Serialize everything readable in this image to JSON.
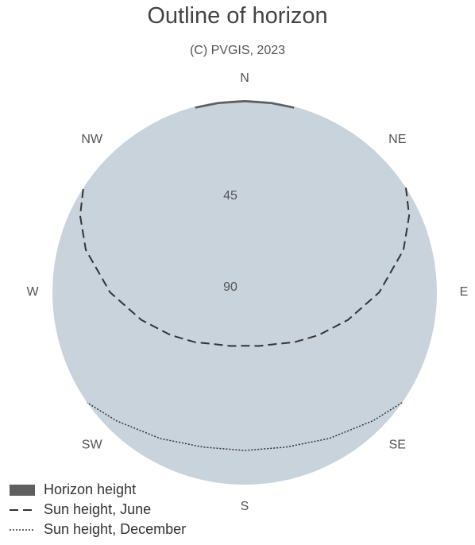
{
  "chart_data": {
    "type": "polar-line",
    "title": "Outline of horizon",
    "subtitle": "(C) PVGIS, 2023",
    "directions": [
      {
        "label": "N",
        "azimuth": 0
      },
      {
        "label": "NE",
        "azimuth": 45
      },
      {
        "label": "E",
        "azimuth": 90
      },
      {
        "label": "SE",
        "azimuth": 135
      },
      {
        "label": "S",
        "azimuth": 180
      },
      {
        "label": "SW",
        "azimuth": 225
      },
      {
        "label": "W",
        "azimuth": 270
      },
      {
        "label": "NW",
        "azimuth": 315
      }
    ],
    "radial_ticks": [
      {
        "label": "45",
        "value": 45
      },
      {
        "label": "90",
        "value": 90
      }
    ],
    "radial_axis": "zenith at 90, horizon at 0",
    "series": [
      {
        "name": "Horizon height",
        "style": "filled",
        "color": "#5f5f5f",
        "points": [
          {
            "azimuth": 345,
            "height": 1
          },
          {
            "azimuth": 352,
            "height": 1
          },
          {
            "azimuth": 0,
            "height": 1
          },
          {
            "azimuth": 8,
            "height": 1
          },
          {
            "azimuth": 15,
            "height": 1
          }
        ]
      },
      {
        "name": "Sun height, June",
        "style": "dashed",
        "color": "#333333",
        "points": [
          {
            "azimuth": 57,
            "height": 0
          },
          {
            "azimuth": 65,
            "height": 5
          },
          {
            "azimuth": 75,
            "height": 13
          },
          {
            "azimuth": 90,
            "height": 27
          },
          {
            "azimuth": 105,
            "height": 40
          },
          {
            "azimuth": 120,
            "height": 50
          },
          {
            "azimuth": 135,
            "height": 57
          },
          {
            "azimuth": 150,
            "height": 62
          },
          {
            "azimuth": 165,
            "height": 64
          },
          {
            "azimuth": 180,
            "height": 65
          },
          {
            "azimuth": 195,
            "height": 64
          },
          {
            "azimuth": 210,
            "height": 62
          },
          {
            "azimuth": 225,
            "height": 57
          },
          {
            "azimuth": 240,
            "height": 50
          },
          {
            "azimuth": 255,
            "height": 40
          },
          {
            "azimuth": 270,
            "height": 27
          },
          {
            "azimuth": 285,
            "height": 13
          },
          {
            "azimuth": 295,
            "height": 5
          },
          {
            "azimuth": 303,
            "height": 0
          }
        ]
      },
      {
        "name": "Sun height, December",
        "style": "dotted",
        "color": "#333333",
        "points": [
          {
            "azimuth": 125,
            "height": 0
          },
          {
            "azimuth": 135,
            "height": 5
          },
          {
            "azimuth": 150,
            "height": 11
          },
          {
            "azimuth": 165,
            "height": 15
          },
          {
            "azimuth": 180,
            "height": 16
          },
          {
            "azimuth": 195,
            "height": 15
          },
          {
            "azimuth": 210,
            "height": 11
          },
          {
            "azimuth": 225,
            "height": 5
          },
          {
            "azimuth": 235,
            "height": 0
          }
        ]
      }
    ],
    "legend_position": "bottom-left",
    "colors": {
      "sky": "#c9d3dc",
      "horizon_fill": "#5f5f5f",
      "line": "#333333"
    }
  }
}
